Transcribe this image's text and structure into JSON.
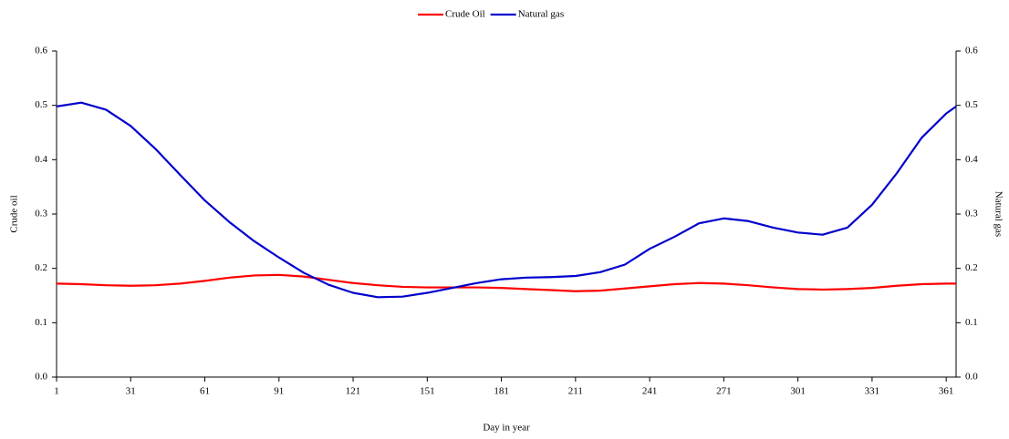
{
  "chart_data": {
    "type": "line",
    "x_label": "Day in year",
    "y_label": "Crude oil",
    "y2_label": "Natural gas",
    "x": [
      1,
      11,
      21,
      31,
      41,
      51,
      61,
      71,
      81,
      91,
      101,
      111,
      121,
      131,
      141,
      151,
      161,
      171,
      181,
      191,
      201,
      211,
      221,
      231,
      241,
      251,
      261,
      271,
      281,
      291,
      301,
      311,
      321,
      331,
      341,
      351,
      361,
      365
    ],
    "series": [
      {
        "name": "Crude Oil",
        "color": "#ff0000",
        "axis": "y",
        "values": [
          0.172,
          0.171,
          0.169,
          0.168,
          0.169,
          0.172,
          0.177,
          0.183,
          0.187,
          0.188,
          0.185,
          0.179,
          0.173,
          0.169,
          0.166,
          0.165,
          0.165,
          0.165,
          0.164,
          0.162,
          0.16,
          0.158,
          0.159,
          0.163,
          0.167,
          0.171,
          0.173,
          0.172,
          0.169,
          0.165,
          0.162,
          0.161,
          0.162,
          0.164,
          0.168,
          0.171,
          0.172,
          0.172
        ]
      },
      {
        "name": "Natural gas",
        "color": "#0000cc",
        "axis": "y2",
        "values": [
          0.498,
          0.505,
          0.492,
          0.462,
          0.42,
          0.372,
          0.325,
          0.285,
          0.25,
          0.22,
          0.192,
          0.17,
          0.155,
          0.147,
          0.148,
          0.155,
          0.164,
          0.173,
          0.18,
          0.183,
          0.184,
          0.186,
          0.193,
          0.207,
          0.236,
          0.258,
          0.283,
          0.292,
          0.287,
          0.275,
          0.266,
          0.262,
          0.275,
          0.317,
          0.375,
          0.44,
          0.485,
          0.498
        ]
      }
    ],
    "xlim": [
      1,
      365
    ],
    "xticks": [
      1,
      31,
      61,
      91,
      121,
      151,
      181,
      211,
      241,
      271,
      301,
      331,
      361
    ],
    "ylim": [
      0,
      0.6
    ],
    "yticks": [
      {
        "value": 0,
        "label": "0.0"
      },
      0.1,
      0.2,
      0.3,
      0.4,
      0.5,
      0.6
    ],
    "y2lim": [
      0,
      0.6
    ],
    "y2ticks": [
      {
        "value": 0,
        "label": "0.0"
      },
      0.1,
      0.2,
      0.3,
      0.4,
      0.5,
      0.6
    ],
    "legend": "top",
    "grid": false
  }
}
